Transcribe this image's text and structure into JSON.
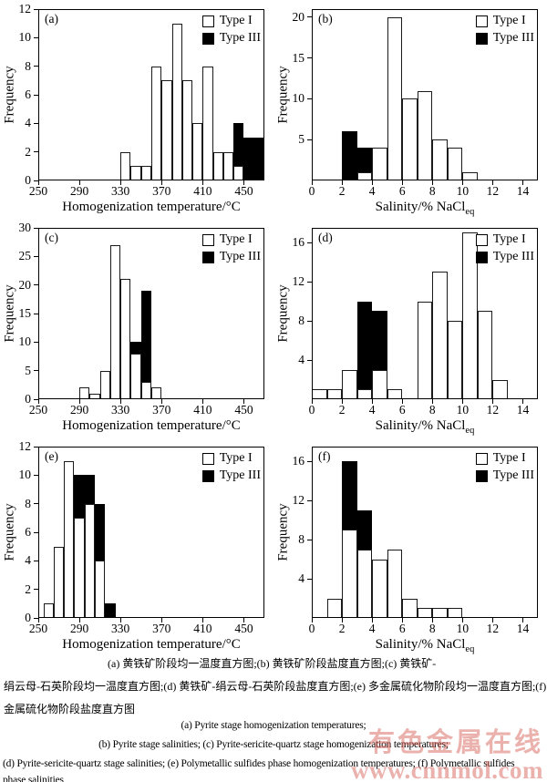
{
  "legend": {
    "type1_label": "Type I",
    "type1_color": "#ffffff",
    "type3_label": "Type III",
    "type3_color": "#000000"
  },
  "chart_data": [
    {
      "id": "a",
      "type": "bar",
      "panel_label": "(a)",
      "xlabel": "Homogenization temperature/°C",
      "xlabel_sub": "",
      "ylabel": "Frequency",
      "xlim": [
        250,
        470
      ],
      "ylim": [
        0,
        12
      ],
      "xticks": [
        250,
        290,
        330,
        370,
        410,
        450
      ],
      "yticks": [
        0,
        2,
        4,
        6,
        8,
        10,
        12
      ],
      "bin_width": 10,
      "grid": false,
      "legend_position": "top-right",
      "bars": [
        {
          "x0": 330,
          "type1": 2,
          "type3": 0
        },
        {
          "x0": 340,
          "type1": 1,
          "type3": 0
        },
        {
          "x0": 350,
          "type1": 1,
          "type3": 0
        },
        {
          "x0": 360,
          "type1": 8,
          "type3": 0
        },
        {
          "x0": 370,
          "type1": 7,
          "type3": 0
        },
        {
          "x0": 380,
          "type1": 11,
          "type3": 0
        },
        {
          "x0": 390,
          "type1": 7,
          "type3": 0
        },
        {
          "x0": 400,
          "type1": 4,
          "type3": 0
        },
        {
          "x0": 410,
          "type1": 8,
          "type3": 0
        },
        {
          "x0": 420,
          "type1": 2,
          "type3": 0
        },
        {
          "x0": 430,
          "type1": 2,
          "type3": 0
        },
        {
          "x0": 440,
          "type1": 1,
          "type3": 3
        },
        {
          "x0": 450,
          "type1": 0,
          "type3": 3
        },
        {
          "x0": 460,
          "type1": 0,
          "type3": 3
        }
      ]
    },
    {
      "id": "b",
      "type": "bar",
      "panel_label": "(b)",
      "xlabel": "Salinity/% NaCl",
      "xlabel_sub": "eq",
      "ylabel": "Frequency",
      "xlim": [
        0,
        15
      ],
      "ylim": [
        0,
        21
      ],
      "xticks": [
        0,
        2,
        4,
        6,
        8,
        10,
        12,
        14
      ],
      "yticks": [
        5,
        10,
        15,
        20
      ],
      "bin_width": 1,
      "grid": false,
      "legend_position": "top-right",
      "bars": [
        {
          "x0": 2,
          "type1": 0,
          "type3": 6
        },
        {
          "x0": 3,
          "type1": 1,
          "type3": 3
        },
        {
          "x0": 4,
          "type1": 4,
          "type3": 0
        },
        {
          "x0": 5,
          "type1": 20,
          "type3": 0
        },
        {
          "x0": 6,
          "type1": 10,
          "type3": 0
        },
        {
          "x0": 7,
          "type1": 11,
          "type3": 0
        },
        {
          "x0": 8,
          "type1": 5,
          "type3": 0
        },
        {
          "x0": 9,
          "type1": 4,
          "type3": 0
        },
        {
          "x0": 10,
          "type1": 1,
          "type3": 0
        }
      ]
    },
    {
      "id": "c",
      "type": "bar",
      "panel_label": "(c)",
      "xlabel": "Homogenization temperature/°C",
      "xlabel_sub": "",
      "ylabel": "Frequency",
      "xlim": [
        250,
        470
      ],
      "ylim": [
        0,
        30
      ],
      "xticks": [
        250,
        290,
        330,
        370,
        410,
        450
      ],
      "yticks": [
        0,
        5,
        10,
        15,
        20,
        25,
        30
      ],
      "bin_width": 10,
      "grid": false,
      "legend_position": "top-right",
      "bars": [
        {
          "x0": 290,
          "type1": 2,
          "type3": 0
        },
        {
          "x0": 300,
          "type1": 1,
          "type3": 0
        },
        {
          "x0": 310,
          "type1": 5,
          "type3": 0
        },
        {
          "x0": 320,
          "type1": 27,
          "type3": 0
        },
        {
          "x0": 330,
          "type1": 21,
          "type3": 0
        },
        {
          "x0": 340,
          "type1": 8,
          "type3": 2
        },
        {
          "x0": 350,
          "type1": 3,
          "type3": 16
        },
        {
          "x0": 360,
          "type1": 2,
          "type3": 0
        }
      ]
    },
    {
      "id": "d",
      "type": "bar",
      "panel_label": "(d)",
      "xlabel": "Salinity/% NaCl",
      "xlabel_sub": "eq",
      "ylabel": "Frequency",
      "xlim": [
        0,
        15
      ],
      "ylim": [
        0,
        17.5
      ],
      "xticks": [
        0,
        2,
        4,
        6,
        8,
        10,
        12,
        14
      ],
      "yticks": [
        4,
        8,
        12,
        16
      ],
      "bin_width": 1,
      "grid": false,
      "legend_position": "top-right",
      "bars": [
        {
          "x0": 0,
          "type1": 1,
          "type3": 0
        },
        {
          "x0": 1,
          "type1": 1,
          "type3": 0
        },
        {
          "x0": 2,
          "type1": 3,
          "type3": 0
        },
        {
          "x0": 3,
          "type1": 1,
          "type3": 9
        },
        {
          "x0": 4,
          "type1": 3,
          "type3": 6
        },
        {
          "x0": 5,
          "type1": 1,
          "type3": 0
        },
        {
          "x0": 7,
          "type1": 10,
          "type3": 0
        },
        {
          "x0": 8,
          "type1": 13,
          "type3": 0
        },
        {
          "x0": 9,
          "type1": 8,
          "type3": 0
        },
        {
          "x0": 10,
          "type1": 17,
          "type3": 0
        },
        {
          "x0": 11,
          "type1": 9,
          "type3": 0
        },
        {
          "x0": 12,
          "type1": 2,
          "type3": 0
        }
      ]
    },
    {
      "id": "e",
      "type": "bar",
      "panel_label": "(e)",
      "xlabel": "Homogenization temperature/°C",
      "xlabel_sub": "",
      "ylabel": "Frequency",
      "xlim": [
        250,
        470
      ],
      "ylim": [
        0,
        12
      ],
      "xticks": [
        250,
        290,
        330,
        370,
        410,
        450
      ],
      "yticks": [
        0,
        2,
        4,
        6,
        8,
        10,
        12
      ],
      "bin_width": 10,
      "grid": false,
      "legend_position": "top-right",
      "bars": [
        {
          "x0": 255,
          "type1": 1,
          "type3": 0
        },
        {
          "x0": 265,
          "type1": 5,
          "type3": 0
        },
        {
          "x0": 275,
          "type1": 11,
          "type3": 0
        },
        {
          "x0": 285,
          "type1": 7,
          "type3": 3
        },
        {
          "x0": 295,
          "type1": 8,
          "type3": 2
        },
        {
          "x0": 305,
          "type1": 4,
          "type3": 4
        },
        {
          "x0": 315,
          "type1": 0,
          "type3": 1
        }
      ]
    },
    {
      "id": "f",
      "type": "bar",
      "panel_label": "(f)",
      "xlabel": "Salinity/% NaCl",
      "xlabel_sub": "eq",
      "ylabel": "Frequency",
      "xlim": [
        0,
        15
      ],
      "ylim": [
        0,
        17.5
      ],
      "xticks": [
        0,
        2,
        4,
        6,
        8,
        10,
        12,
        14
      ],
      "yticks": [
        4,
        8,
        12,
        16
      ],
      "bin_width": 1,
      "grid": false,
      "legend_position": "top-right",
      "bars": [
        {
          "x0": 1,
          "type1": 2,
          "type3": 0
        },
        {
          "x0": 2,
          "type1": 9,
          "type3": 7
        },
        {
          "x0": 3,
          "type1": 7,
          "type3": 4
        },
        {
          "x0": 4,
          "type1": 6,
          "type3": 0
        },
        {
          "x0": 5,
          "type1": 7,
          "type3": 0
        },
        {
          "x0": 6,
          "type1": 2,
          "type3": 0
        },
        {
          "x0": 7,
          "type1": 1,
          "type3": 0
        },
        {
          "x0": 8,
          "type1": 1,
          "type3": 0
        },
        {
          "x0": 9,
          "type1": 1,
          "type3": 0
        }
      ]
    }
  ],
  "caption_cn": {
    "line1": "(a) 黄铁矿阶段均一温度直方图;(b) 黄铁矿阶段盐度直方图;(c) 黄铁矿-",
    "line2": "绢云母-石英阶段均一温度直方图;(d) 黄铁矿-绢云母-石英阶段盐度直方图;(e) 多金属硫化物阶段均一温度直方图;(f) 多",
    "line3": "金属硫化物阶段盐度直方图"
  },
  "caption_en": {
    "line1": "(a) Pyrite stage homogenization temperatures;",
    "line2": "(b) Pyrite stage salinities; (c) Pyrite-sericite-quartz stage homogenization temperatures;",
    "line3": "(d) Pyrite-sericite-quartz stage salinities; (e) Polymetallic sulfides phase homogenization temperatures; (f) Polymetallic sulfides",
    "line4": "phase salinities"
  },
  "watermark": {
    "line1": "有色金属在线",
    "line2": "www.cnnmol.com",
    "color": "#d65c54"
  }
}
